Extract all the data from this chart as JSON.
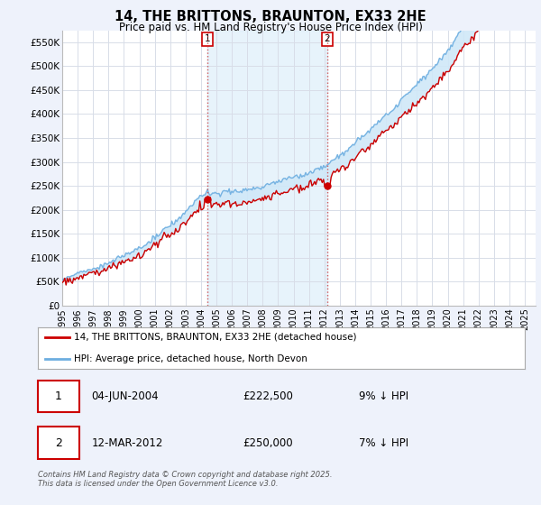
{
  "title": "14, THE BRITTONS, BRAUNTON, EX33 2HE",
  "subtitle": "Price paid vs. HM Land Registry's House Price Index (HPI)",
  "legend_line1": "14, THE BRITTONS, BRAUNTON, EX33 2HE (detached house)",
  "legend_line2": "HPI: Average price, detached house, North Devon",
  "annotation1_label": "1",
  "annotation1_date": "04-JUN-2004",
  "annotation1_price": "£222,500",
  "annotation1_hpi": "9% ↓ HPI",
  "annotation2_label": "2",
  "annotation2_date": "12-MAR-2012",
  "annotation2_price": "£250,000",
  "annotation2_hpi": "7% ↓ HPI",
  "footnote": "Contains HM Land Registry data © Crown copyright and database right 2025.\nThis data is licensed under the Open Government Licence v3.0.",
  "ylim": [
    0,
    575000
  ],
  "yticks": [
    0,
    50000,
    100000,
    150000,
    200000,
    250000,
    300000,
    350000,
    400000,
    450000,
    500000,
    550000
  ],
  "ytick_labels": [
    "£0",
    "£50K",
    "£100K",
    "£150K",
    "£200K",
    "£250K",
    "£300K",
    "£350K",
    "£400K",
    "£450K",
    "£500K",
    "£550K"
  ],
  "hpi_color": "#6daee0",
  "price_color": "#cc0000",
  "fill_color": "#d0e8f8",
  "bg_color": "#eef2fb",
  "plot_bg": "#ffffff",
  "grid_color": "#d8dde8",
  "sale1_x": 2004.42,
  "sale1_y": 222500,
  "sale2_x": 2012.19,
  "sale2_y": 250000,
  "xmin": 1995.0,
  "xmax": 2025.7,
  "xticks": [
    1995,
    1996,
    1997,
    1998,
    1999,
    2000,
    2001,
    2002,
    2003,
    2004,
    2005,
    2006,
    2007,
    2008,
    2009,
    2010,
    2011,
    2012,
    2013,
    2014,
    2015,
    2016,
    2017,
    2018,
    2019,
    2020,
    2021,
    2022,
    2023,
    2024,
    2025
  ]
}
